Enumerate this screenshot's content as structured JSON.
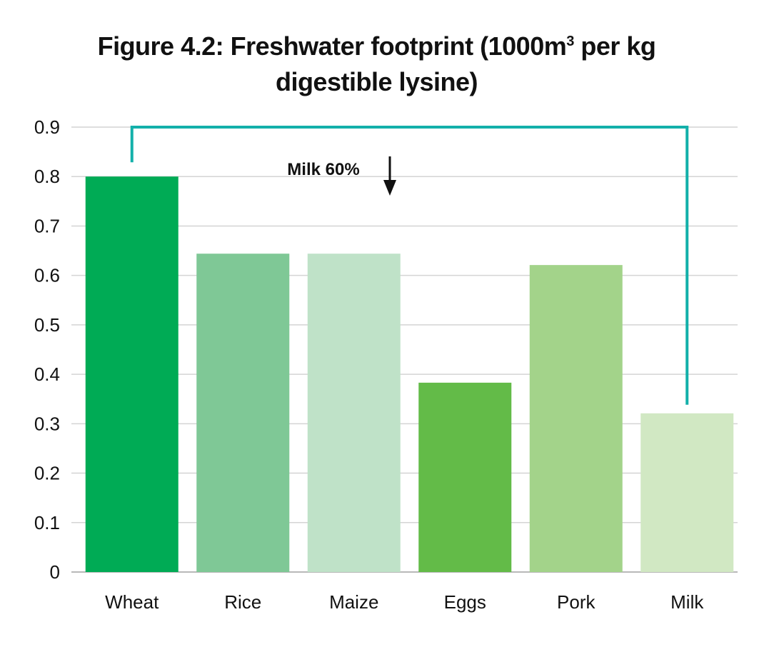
{
  "chart_data": {
    "type": "bar",
    "title_line1_pre": "Figure 4.2: Freshwater footprint (1000m",
    "title_sup": "3",
    "title_line1_post": " per kg",
    "title_line2": "digestible lysine)",
    "categories": [
      "Wheat",
      "Rice",
      "Maize",
      "Eggs",
      "Pork",
      "Milk"
    ],
    "values": [
      0.8,
      0.644,
      0.644,
      0.383,
      0.621,
      0.321
    ],
    "colors": [
      "#00ab55",
      "#7fc896",
      "#bfe2c8",
      "#63bb48",
      "#a3d38a",
      "#d1e8c3"
    ],
    "ylim": [
      0,
      0.9
    ],
    "yticks": [
      "0",
      "0.1",
      "0.2",
      "0.3",
      "0.4",
      "0.5",
      "0.6",
      "0.7",
      "0.8",
      "0.9"
    ],
    "grid": true,
    "annotation": {
      "text": "Milk 60%",
      "from": "Wheat",
      "to": "Milk",
      "bracket_color": "#13b0aa"
    }
  }
}
